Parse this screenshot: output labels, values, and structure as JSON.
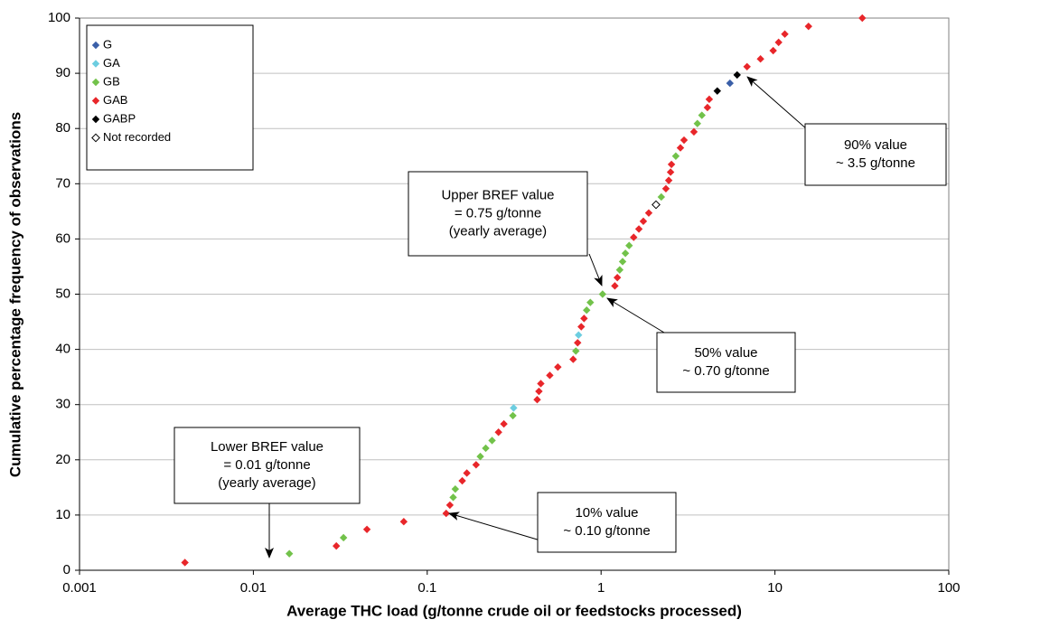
{
  "chart_data": {
    "type": "scatter",
    "x_label": "Average THC load (g/tonne crude oil or feedstocks processed)",
    "y_label": "Cumulative percentage frequency of observations",
    "xlim": [
      0.001,
      100
    ],
    "xticks": [
      0.001,
      0.01,
      0.1,
      1,
      10,
      100
    ],
    "x_scale": "log",
    "ylim": [
      0,
      100
    ],
    "yticks": [
      0,
      10,
      20,
      30,
      40,
      50,
      60,
      70,
      80,
      90,
      100
    ],
    "grid": true,
    "legend": "upper left",
    "series": [
      {
        "name": "G",
        "color": "#3a5fa8",
        "x": [
          5.51
        ],
        "values": [
          88.2
        ]
      },
      {
        "name": "GA",
        "color": "#6ccde0",
        "x": [
          0.314,
          0.742
        ],
        "values": [
          29.4,
          42.6
        ]
      },
      {
        "name": "GB",
        "color": "#72c24a",
        "x": [
          0.0161,
          0.033,
          0.141,
          0.145,
          0.202,
          0.217,
          0.236,
          0.311,
          0.716,
          0.826,
          0.867,
          1.02,
          1.28,
          1.33,
          1.38,
          1.45,
          2.22,
          2.69,
          3.58,
          3.8
        ],
        "values": [
          3.0,
          5.9,
          13.2,
          14.7,
          20.6,
          22.1,
          23.5,
          28.0,
          39.7,
          47.1,
          48.5,
          50.0,
          54.4,
          55.9,
          57.4,
          58.8,
          67.6,
          75.0,
          80.9,
          82.4
        ]
      },
      {
        "name": "GAB",
        "color": "#e8262a",
        "x": [
          0.00404,
          0.03,
          0.045,
          0.0733,
          0.1285,
          0.135,
          0.159,
          0.169,
          0.191,
          0.257,
          0.276,
          0.429,
          0.439,
          0.45,
          0.507,
          0.564,
          0.691,
          0.733,
          0.769,
          0.798,
          1.2,
          1.24,
          1.54,
          1.65,
          1.75,
          1.88,
          2.36,
          2.45,
          2.51,
          2.54,
          2.86,
          3.0,
          3.42,
          4.09,
          4.19,
          6.91,
          8.26,
          9.77,
          10.5,
          11.4,
          15.6,
          31.8
        ],
        "values": [
          1.4,
          4.4,
          7.4,
          8.8,
          10.3,
          11.8,
          16.2,
          17.6,
          19.1,
          25.0,
          26.5,
          30.9,
          32.4,
          33.8,
          35.3,
          36.8,
          38.2,
          41.2,
          44.1,
          45.6,
          51.5,
          53.0,
          60.3,
          61.8,
          63.2,
          64.7,
          69.1,
          70.6,
          72.1,
          73.5,
          76.5,
          77.9,
          79.4,
          83.8,
          85.3,
          91.2,
          92.6,
          94.1,
          95.6,
          97.1,
          98.5,
          100.0
        ]
      },
      {
        "name": "GABP",
        "color": "#000000",
        "x": [
          4.66,
          6.06
        ],
        "values": [
          86.8,
          89.7
        ]
      },
      {
        "name": "Not recorded",
        "color": "#ffffff",
        "x": [
          2.07
        ],
        "values": [
          66.2
        ]
      }
    ],
    "annotations": [
      {
        "lines": [
          "Upper BREF value",
          "= 0.75 g/tonne",
          "(yearly average)"
        ]
      },
      {
        "lines": [
          "50% value",
          "~ 0.70 g/tonne"
        ]
      },
      {
        "lines": [
          "90% value",
          "~ 3.5 g/tonne"
        ]
      },
      {
        "lines": [
          "Lower BREF value",
          "= 0.01 g/tonne",
          "(yearly average)"
        ]
      },
      {
        "lines": [
          "10% value",
          "~ 0.10 g/tonne"
        ]
      }
    ]
  }
}
